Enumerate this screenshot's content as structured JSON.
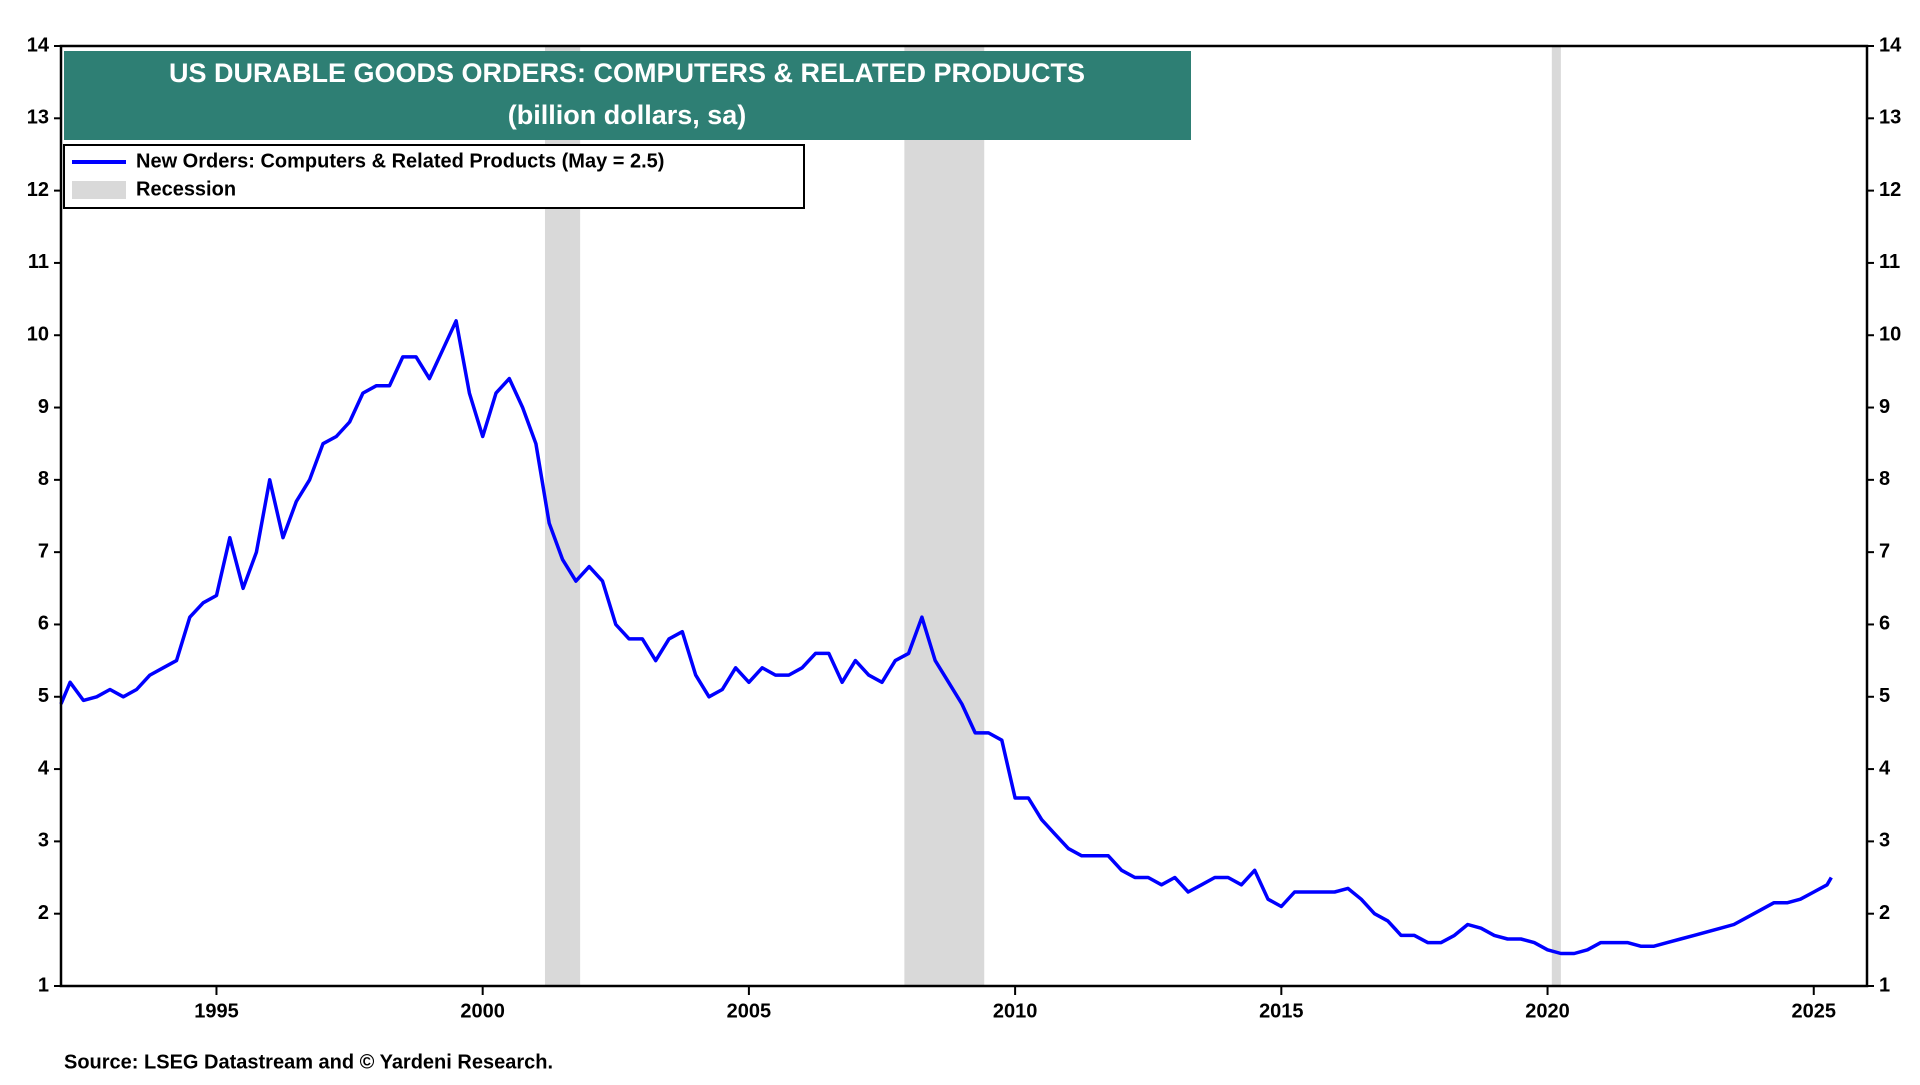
{
  "chart_data": {
    "type": "line",
    "title": "US DURABLE GOODS ORDERS: COMPUTERS & RELATED PRODUCTS",
    "subtitle": "(billion dollars, sa)",
    "source": "Source: LSEG Datastream and © Yardeni Research.",
    "xlim": [
      1992.08,
      2026.0
    ],
    "xticks": [
      1995,
      2000,
      2005,
      2010,
      2015,
      2020,
      2025
    ],
    "ylim": [
      1,
      14
    ],
    "yticks": [
      1,
      2,
      3,
      4,
      5,
      6,
      7,
      8,
      9,
      10,
      11,
      12,
      13,
      14
    ],
    "recession_name": "Recession",
    "recession_color": "#d9d9d9",
    "recessions": [
      [
        2001.17,
        2001.83
      ],
      [
        2007.92,
        2009.42
      ],
      [
        2020.08,
        2020.25
      ]
    ],
    "series": [
      {
        "name": "New Orders: Computers & Related Products (May = 2.5)",
        "color": "#0000ff",
        "x": [
          1992.08,
          1992.25,
          1992.5,
          1992.75,
          1993.0,
          1993.25,
          1993.5,
          1993.75,
          1994.0,
          1994.25,
          1994.5,
          1994.75,
          1995.0,
          1995.25,
          1995.5,
          1995.75,
          1996.0,
          1996.25,
          1996.5,
          1996.75,
          1997.0,
          1997.25,
          1997.5,
          1997.75,
          1998.0,
          1998.25,
          1998.5,
          1998.75,
          1999.0,
          1999.25,
          1999.5,
          1999.75,
          2000.0,
          2000.25,
          2000.5,
          2000.75,
          2001.0,
          2001.25,
          2001.5,
          2001.75,
          2002.0,
          2002.25,
          2002.5,
          2002.75,
          2003.0,
          2003.25,
          2003.5,
          2003.75,
          2004.0,
          2004.25,
          2004.5,
          2004.75,
          2005.0,
          2005.25,
          2005.5,
          2005.75,
          2006.0,
          2006.25,
          2006.5,
          2006.75,
          2007.0,
          2007.25,
          2007.5,
          2007.75,
          2008.0,
          2008.25,
          2008.5,
          2008.75,
          2009.0,
          2009.25,
          2009.5,
          2009.75,
          2010.0,
          2010.25,
          2010.5,
          2010.75,
          2011.0,
          2011.25,
          2011.5,
          2011.75,
          2012.0,
          2012.25,
          2012.5,
          2012.75,
          2013.0,
          2013.25,
          2013.5,
          2013.75,
          2014.0,
          2014.25,
          2014.5,
          2014.75,
          2015.0,
          2015.25,
          2015.5,
          2015.75,
          2016.0,
          2016.25,
          2016.5,
          2016.75,
          2017.0,
          2017.25,
          2017.5,
          2017.75,
          2018.0,
          2018.25,
          2018.5,
          2018.75,
          2019.0,
          2019.25,
          2019.5,
          2019.75,
          2020.0,
          2020.25,
          2020.5,
          2020.75,
          2021.0,
          2021.25,
          2021.5,
          2021.75,
          2022.0,
          2022.25,
          2022.5,
          2022.75,
          2023.0,
          2023.25,
          2023.5,
          2023.75,
          2024.0,
          2024.25,
          2024.5,
          2024.75,
          2025.0,
          2025.25,
          2025.33
        ],
        "values": [
          4.9,
          5.2,
          4.95,
          5.0,
          5.1,
          5.0,
          5.1,
          5.3,
          5.4,
          5.5,
          6.1,
          6.3,
          6.4,
          7.2,
          6.5,
          7.0,
          8.0,
          7.2,
          7.7,
          8.0,
          8.5,
          8.6,
          8.8,
          9.2,
          9.3,
          9.3,
          9.7,
          9.7,
          9.4,
          9.8,
          10.2,
          9.2,
          8.6,
          9.2,
          9.4,
          9.0,
          8.5,
          7.4,
          6.9,
          6.6,
          6.8,
          6.6,
          6.0,
          5.8,
          5.8,
          5.5,
          5.8,
          5.9,
          5.3,
          5.0,
          5.1,
          5.4,
          5.2,
          5.4,
          5.3,
          5.3,
          5.4,
          5.6,
          5.6,
          5.2,
          5.5,
          5.3,
          5.2,
          5.5,
          5.6,
          6.1,
          5.5,
          5.2,
          4.9,
          4.5,
          4.5,
          4.4,
          3.6,
          3.6,
          3.3,
          3.1,
          2.9,
          2.8,
          2.8,
          2.8,
          2.6,
          2.5,
          2.5,
          2.4,
          2.5,
          2.3,
          2.4,
          2.5,
          2.5,
          2.4,
          2.6,
          2.2,
          2.1,
          2.3,
          2.3,
          2.3,
          2.3,
          2.35,
          2.2,
          2.0,
          1.9,
          1.7,
          1.7,
          1.6,
          1.6,
          1.7,
          1.85,
          1.8,
          1.7,
          1.65,
          1.65,
          1.6,
          1.5,
          1.45,
          1.45,
          1.5,
          1.6,
          1.6,
          1.6,
          1.55,
          1.55,
          1.6,
          1.65,
          1.7,
          1.75,
          1.8,
          1.85,
          1.95,
          2.05,
          2.15,
          2.15,
          2.2,
          2.3,
          2.4,
          2.5
        ]
      }
    ]
  }
}
